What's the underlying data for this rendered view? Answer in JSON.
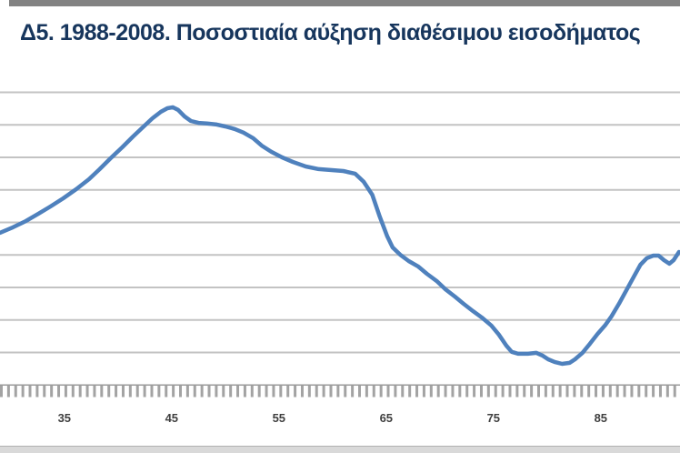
{
  "header": {
    "title": "Δ5. 1988-2008. Ποσοστιαία αύξηση διαθέσιμου εισοδήματος",
    "title_color": "#17365d"
  },
  "decorations": {
    "top_bar_color": "#828282",
    "bottom_bar_color": "#d9d9d9"
  },
  "chart_data": {
    "type": "line",
    "title": "Δ5. 1988-2008. Ποσοστιαία αύξηση διαθέσιμου εισοδήματος",
    "xlabel": "",
    "ylabel": "",
    "x_tick_labels": [
      "35",
      "45",
      "55",
      "65",
      "75",
      "85"
    ],
    "x_tick_values": [
      35,
      45,
      55,
      65,
      75,
      85
    ],
    "x_range_visible": [
      29,
      92.4
    ],
    "y_axis_labels_visible": false,
    "y_units": "gridline intervals above baseline (y-axis cropped out of image)",
    "ylim": [
      0,
      9
    ],
    "gridline_count": 9,
    "grid": true,
    "legend": false,
    "line_color": "#4f81bd",
    "gridline_color": "#c3c3c3",
    "axis_color": "#9b9b9b",
    "tick_color": "#a3a3a3",
    "tick_label_color": "#3f3f3f",
    "series": [
      {
        "name": "Ποσοστιαία αύξηση διαθέσιμου εισοδήματος",
        "points": [
          [
            29.0,
            4.68
          ],
          [
            30.2,
            4.85
          ],
          [
            31.4,
            5.04
          ],
          [
            32.6,
            5.27
          ],
          [
            33.7,
            5.49
          ],
          [
            34.9,
            5.74
          ],
          [
            36.1,
            6.02
          ],
          [
            37.3,
            6.33
          ],
          [
            38.3,
            6.64
          ],
          [
            39.3,
            6.97
          ],
          [
            40.4,
            7.31
          ],
          [
            41.4,
            7.64
          ],
          [
            42.4,
            7.95
          ],
          [
            43.2,
            8.2
          ],
          [
            44.0,
            8.4
          ],
          [
            44.6,
            8.51
          ],
          [
            45.1,
            8.54
          ],
          [
            45.6,
            8.46
          ],
          [
            46.2,
            8.26
          ],
          [
            46.8,
            8.12
          ],
          [
            47.5,
            8.06
          ],
          [
            48.3,
            8.04
          ],
          [
            49.2,
            8.01
          ],
          [
            50.0,
            7.95
          ],
          [
            50.9,
            7.87
          ],
          [
            51.7,
            7.76
          ],
          [
            52.6,
            7.59
          ],
          [
            53.4,
            7.36
          ],
          [
            54.3,
            7.17
          ],
          [
            55.3,
            7.0
          ],
          [
            56.3,
            6.86
          ],
          [
            57.5,
            6.72
          ],
          [
            58.7,
            6.64
          ],
          [
            59.8,
            6.61
          ],
          [
            61.0,
            6.58
          ],
          [
            62.1,
            6.5
          ],
          [
            62.9,
            6.25
          ],
          [
            63.7,
            5.85
          ],
          [
            64.4,
            5.18
          ],
          [
            65.1,
            4.57
          ],
          [
            65.6,
            4.23
          ],
          [
            66.3,
            4.01
          ],
          [
            67.1,
            3.81
          ],
          [
            68.0,
            3.64
          ],
          [
            68.8,
            3.42
          ],
          [
            69.7,
            3.2
          ],
          [
            70.5,
            2.95
          ],
          [
            71.4,
            2.72
          ],
          [
            72.2,
            2.5
          ],
          [
            73.1,
            2.27
          ],
          [
            73.9,
            2.08
          ],
          [
            74.8,
            1.83
          ],
          [
            75.5,
            1.55
          ],
          [
            76.2,
            1.21
          ],
          [
            76.7,
            1.02
          ],
          [
            77.3,
            0.96
          ],
          [
            78.2,
            0.96
          ],
          [
            79.0,
            0.99
          ],
          [
            79.6,
            0.9
          ],
          [
            80.1,
            0.79
          ],
          [
            80.7,
            0.71
          ],
          [
            81.4,
            0.65
          ],
          [
            82.1,
            0.68
          ],
          [
            82.6,
            0.79
          ],
          [
            83.3,
            0.99
          ],
          [
            84.0,
            1.27
          ],
          [
            84.7,
            1.57
          ],
          [
            85.4,
            1.83
          ],
          [
            86.0,
            2.11
          ],
          [
            86.7,
            2.5
          ],
          [
            87.4,
            2.92
          ],
          [
            88.1,
            3.34
          ],
          [
            88.7,
            3.7
          ],
          [
            89.3,
            3.9
          ],
          [
            89.9,
            3.98
          ],
          [
            90.4,
            3.98
          ],
          [
            90.9,
            3.84
          ],
          [
            91.4,
            3.73
          ],
          [
            91.8,
            3.84
          ],
          [
            92.3,
            4.09
          ]
        ]
      }
    ]
  }
}
